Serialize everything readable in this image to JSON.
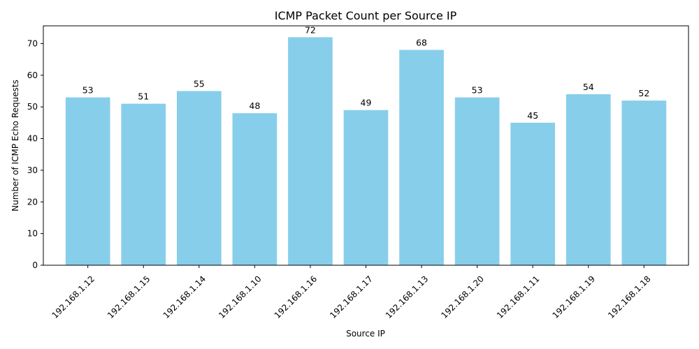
{
  "chart_data": {
    "type": "bar",
    "title": "ICMP Packet Count per Source IP",
    "xlabel": "Source IP",
    "ylabel": "Number of ICMP Echo Requests",
    "categories": [
      "192.168.1.12",
      "192.168.1.15",
      "192.168.1.14",
      "192.168.1.10",
      "192.168.1.16",
      "192.168.1.17",
      "192.168.1.13",
      "192.168.1.20",
      "192.168.1.11",
      "192.168.1.19",
      "192.168.1.18"
    ],
    "values": [
      53,
      51,
      55,
      48,
      72,
      49,
      68,
      53,
      45,
      54,
      52
    ],
    "ylim": [
      0,
      75.6
    ],
    "yticks": [
      0,
      10,
      20,
      30,
      40,
      50,
      60,
      70
    ],
    "bar_color": "#87ceeb",
    "grid": false,
    "data_labels": true,
    "xtick_rotation": 45
  }
}
